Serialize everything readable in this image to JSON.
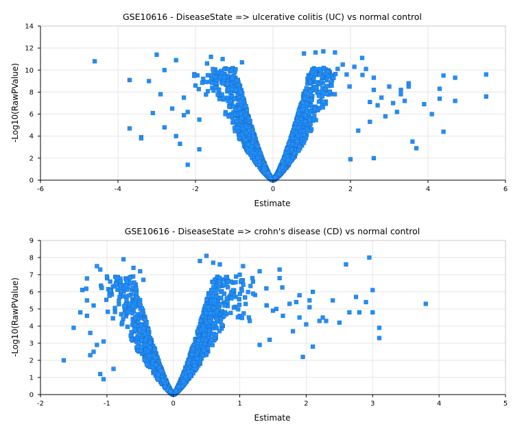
{
  "colors": {
    "marker": "#1e90ff",
    "marker_edge": "#1f6fc4",
    "grid": "#e6e6e6"
  },
  "chart_data": [
    {
      "type": "scatter",
      "title": "GSE10616 - DiseaseState => ulcerative colitis (UC) vs normal control",
      "xlabel": "Estimate",
      "ylabel": "-Log10(RawPValue)",
      "xlim": [
        -6,
        6
      ],
      "ylim": [
        0,
        14
      ],
      "xticks": [
        -6,
        -4,
        -2,
        0,
        2,
        4,
        6
      ],
      "yticks": [
        0,
        2,
        4,
        6,
        8,
        10,
        12,
        14
      ],
      "grid": true,
      "outliers": [
        [
          -4.6,
          10.8
        ],
        [
          -3.7,
          9.1
        ],
        [
          -3.2,
          9.0
        ],
        [
          -3.0,
          11.4
        ],
        [
          -2.8,
          10.0
        ],
        [
          -2.5,
          10.9
        ],
        [
          -3.7,
          4.7
        ],
        [
          -3.4,
          3.9
        ],
        [
          -3.4,
          3.8
        ],
        [
          -3.1,
          6.1
        ],
        [
          -2.9,
          7.8
        ],
        [
          -2.8,
          4.8
        ],
        [
          -2.6,
          6.5
        ],
        [
          -2.3,
          5.9
        ],
        [
          -2.0,
          8.6
        ],
        [
          -2.2,
          1.4
        ],
        [
          -2.5,
          4.0
        ],
        [
          -2.3,
          7.5
        ],
        [
          -2.2,
          6.2
        ],
        [
          -1.8,
          9.2
        ],
        [
          -1.7,
          10.6
        ],
        [
          -1.9,
          5.5
        ],
        [
          -1.6,
          11.2
        ],
        [
          -2.4,
          3.3
        ],
        [
          -1.9,
          2.8
        ],
        [
          -1.3,
          11.0
        ],
        [
          -0.8,
          10.7
        ],
        [
          3.0,
          8.5
        ],
        [
          3.3,
          7.8
        ],
        [
          3.5,
          8.5
        ],
        [
          3.6,
          3.5
        ],
        [
          3.7,
          2.9
        ],
        [
          4.1,
          6.0
        ],
        [
          4.3,
          8.3
        ],
        [
          4.4,
          9.5
        ],
        [
          4.4,
          4.4
        ],
        [
          4.7,
          9.3
        ],
        [
          4.7,
          7.2
        ],
        [
          5.5,
          9.6
        ],
        [
          5.5,
          7.6
        ],
        [
          4.3,
          7.4
        ],
        [
          2.9,
          5.8
        ],
        [
          3.1,
          7.0
        ],
        [
          3.2,
          6.2
        ],
        [
          3.4,
          7.2
        ],
        [
          2.7,
          6.8
        ],
        [
          2.5,
          5.3
        ],
        [
          2.6,
          8.2
        ],
        [
          2.4,
          10.1
        ],
        [
          2.3,
          11.1
        ],
        [
          2.6,
          9.3
        ],
        [
          2.6,
          2.0
        ],
        [
          2.8,
          7.5
        ],
        [
          2.2,
          4.5
        ],
        [
          2.0,
          1.9
        ],
        [
          1.8,
          10.5
        ],
        [
          1.6,
          11.6
        ],
        [
          1.3,
          11.7
        ],
        [
          0.8,
          11.5
        ],
        [
          1.1,
          11.6
        ],
        [
          2.1,
          10.3
        ],
        [
          2.5,
          7.1
        ],
        [
          1.9,
          9.6
        ],
        [
          3.5,
          8.8
        ],
        [
          3.9,
          6.9
        ],
        [
          3.3,
          8.2
        ]
      ]
    },
    {
      "type": "scatter",
      "title": "GSE10616 - DiseaseState => crohn's disease (CD) vs normal control",
      "xlabel": "Estimate",
      "ylabel": "-Log10(RawPValue)",
      "xlim": [
        -2,
        5
      ],
      "ylim": [
        0,
        9
      ],
      "xticks": [
        -2,
        -1,
        0,
        1,
        2,
        3,
        4,
        5
      ],
      "yticks": [
        0,
        1,
        2,
        3,
        4,
        5,
        6,
        7,
        8,
        9
      ],
      "grid": true,
      "outliers": [
        [
          -1.65,
          2.0
        ],
        [
          -1.5,
          3.9
        ],
        [
          -1.4,
          4.8
        ],
        [
          -1.3,
          4.6
        ],
        [
          -1.25,
          3.6
        ],
        [
          -1.2,
          5.2
        ],
        [
          -1.15,
          7.5
        ],
        [
          -1.1,
          7.3
        ],
        [
          -1.0,
          6.9
        ],
        [
          -0.95,
          6.6
        ],
        [
          -0.75,
          7.9
        ],
        [
          -0.85,
          6.8
        ],
        [
          -0.6,
          7.4
        ],
        [
          -0.5,
          7.2
        ],
        [
          -0.45,
          6.7
        ],
        [
          -1.1,
          1.2
        ],
        [
          -1.05,
          0.9
        ],
        [
          -0.9,
          1.5
        ],
        [
          -1.2,
          2.5
        ],
        [
          -1.25,
          2.3
        ],
        [
          -1.3,
          5.5
        ],
        [
          -1.05,
          3.1
        ],
        [
          -1.15,
          2.9
        ],
        [
          0.4,
          7.8
        ],
        [
          0.5,
          8.1
        ],
        [
          0.6,
          7.7
        ],
        [
          0.7,
          7.6
        ],
        [
          1.05,
          7.5
        ],
        [
          1.3,
          7.2
        ],
        [
          1.6,
          7.3
        ],
        [
          1.6,
          6.8
        ],
        [
          1.9,
          5.8
        ],
        [
          2.05,
          5.5
        ],
        [
          2.1,
          6.0
        ],
        [
          2.4,
          5.5
        ],
        [
          2.6,
          7.6
        ],
        [
          2.65,
          4.8
        ],
        [
          2.75,
          5.7
        ],
        [
          2.8,
          4.8
        ],
        [
          2.9,
          5.4
        ],
        [
          2.95,
          8.0
        ],
        [
          3.0,
          6.1
        ],
        [
          3.0,
          4.8
        ],
        [
          3.1,
          3.9
        ],
        [
          3.1,
          3.3
        ],
        [
          3.8,
          5.3
        ],
        [
          2.25,
          4.5
        ],
        [
          2.0,
          4.1
        ],
        [
          2.2,
          4.3
        ],
        [
          1.9,
          4.5
        ],
        [
          1.65,
          4.6
        ],
        [
          1.5,
          4.9
        ],
        [
          1.8,
          3.7
        ],
        [
          2.3,
          4.3
        ],
        [
          2.5,
          4.2
        ],
        [
          2.1,
          2.8
        ],
        [
          1.95,
          2.2
        ],
        [
          1.75,
          5.3
        ],
        [
          1.4,
          6.2
        ],
        [
          1.2,
          5.9
        ],
        [
          1.2,
          6.6
        ],
        [
          1.55,
          5.0
        ],
        [
          2.05,
          5.1
        ],
        [
          1.85,
          5.4
        ],
        [
          0.9,
          6.1
        ],
        [
          1.0,
          7.0
        ],
        [
          1.15,
          4.3
        ],
        [
          1.45,
          3.2
        ],
        [
          1.3,
          2.9
        ]
      ]
    }
  ]
}
